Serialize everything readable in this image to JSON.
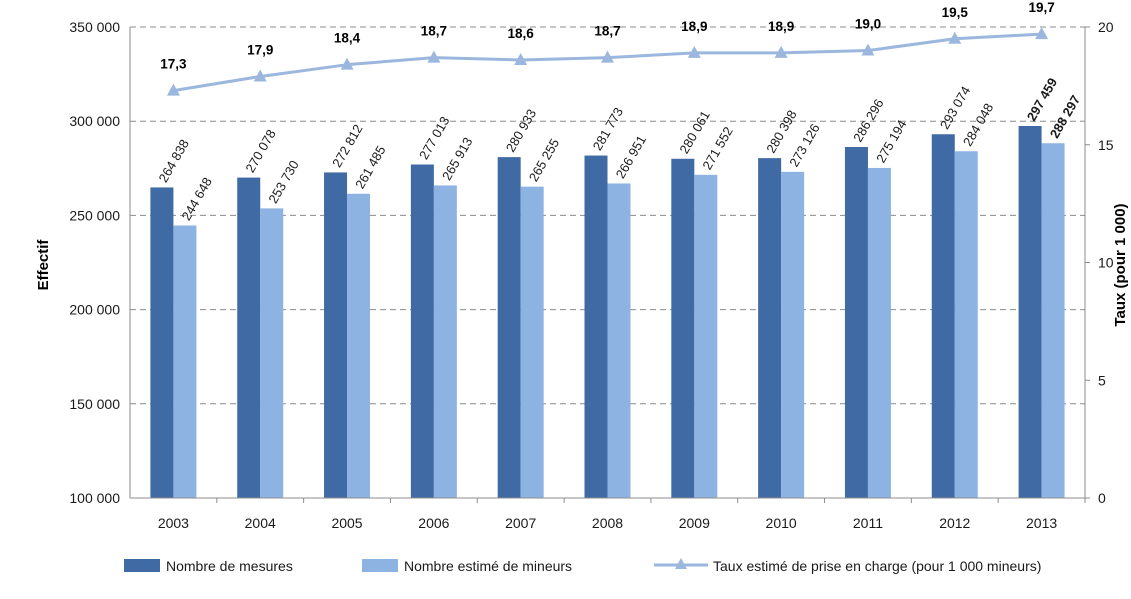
{
  "chart_data": {
    "type": "bar",
    "categories": [
      "2003",
      "2004",
      "2005",
      "2006",
      "2007",
      "2008",
      "2009",
      "2010",
      "2011",
      "2012",
      "2013"
    ],
    "series": [
      {
        "name": "Nombre de mesures",
        "kind": "bar",
        "axis": "left",
        "color": "#3f6aa3",
        "values": [
          264838,
          270078,
          272812,
          277013,
          280933,
          281773,
          280061,
          280398,
          286296,
          293074,
          297459
        ],
        "labels": [
          "264 838",
          "270 078",
          "272 812",
          "277 013",
          "280 933",
          "281 773",
          "280 061",
          "280 398",
          "286 296",
          "293 074",
          "297 459"
        ]
      },
      {
        "name": "Nombre estimé de mineurs",
        "kind": "bar",
        "axis": "left",
        "color": "#8db3e2",
        "values": [
          244648,
          253730,
          261485,
          265913,
          265255,
          266951,
          271552,
          273126,
          275194,
          284048,
          288297
        ],
        "labels": [
          "244 648",
          "253 730",
          "261 485",
          "265 913",
          "265 255",
          "266 951",
          "271 552",
          "273 126",
          "275 194",
          "284 048",
          "288 297"
        ]
      },
      {
        "name": "Taux estimé de prise en charge (pour 1 000 mineurs)",
        "kind": "line",
        "axis": "right",
        "color": "#9bb7dd",
        "marker": "triangle",
        "values": [
          17.3,
          17.9,
          18.4,
          18.7,
          18.6,
          18.7,
          18.9,
          18.9,
          19.0,
          19.5,
          19.7
        ],
        "labels": [
          "17,3",
          "17,9",
          "18,4",
          "18,7",
          "18,6",
          "18,7",
          "18,9",
          "18,9",
          "19,0",
          "19,5",
          "19,7"
        ]
      }
    ],
    "ylabel": "Effectif",
    "y2label": "Taux (pour 1 000)",
    "ylim": [
      100000,
      350000
    ],
    "y2lim": [
      0,
      20
    ],
    "yticks": [
      "100 000",
      "150 000",
      "200 000",
      "250 000",
      "300 000",
      "350 000"
    ],
    "y2ticks": [
      "0",
      "5",
      "10",
      "15",
      "20"
    ],
    "grid": "horizontal dashed",
    "legend": "bottom"
  }
}
